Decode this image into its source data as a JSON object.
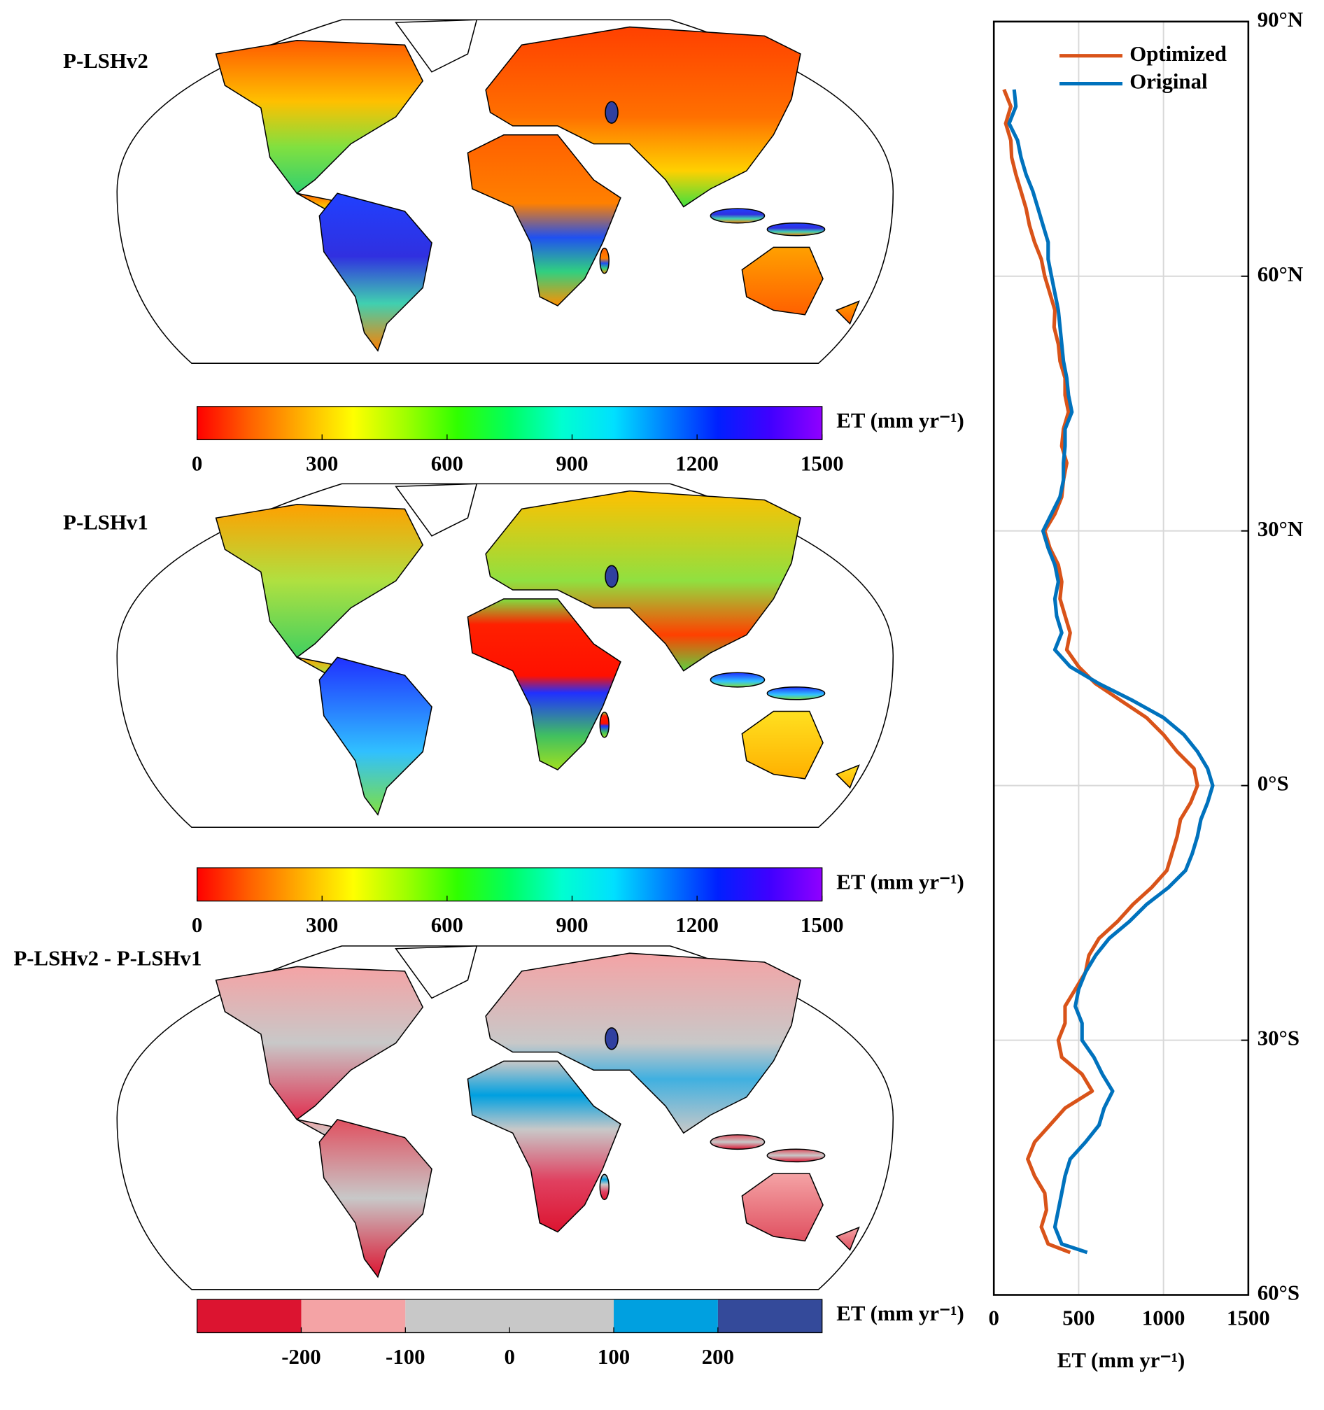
{
  "chart_data": [
    {
      "type": "map",
      "title": "P-LSHv2",
      "colorbar": {
        "label": "ET (mm yr⁻¹)",
        "clim": [
          0,
          1500
        ],
        "ticks": [
          0,
          300,
          600,
          900,
          1200,
          1500
        ],
        "colormap": [
          "#ff0000",
          "#ff6000",
          "#ffb000",
          "#ffff00",
          "#a0ff00",
          "#30ff00",
          "#00ff60",
          "#00ffd0",
          "#00e0ff",
          "#0080ff",
          "#0020ff",
          "#4000ff",
          "#9000ff"
        ]
      }
    },
    {
      "type": "map",
      "title": "P-LSHv1",
      "colorbar": {
        "label": "ET (mm yr⁻¹)",
        "clim": [
          0,
          1500
        ],
        "ticks": [
          0,
          300,
          600,
          900,
          1200,
          1500
        ],
        "colormap": [
          "#ff0000",
          "#ff6000",
          "#ffb000",
          "#ffff00",
          "#a0ff00",
          "#30ff00",
          "#00ff60",
          "#00ffd0",
          "#00e0ff",
          "#0080ff",
          "#0020ff",
          "#4000ff",
          "#9000ff"
        ]
      }
    },
    {
      "type": "map",
      "title": "P-LSHv2 - P-LSHv1",
      "colorbar": {
        "label": "ET (mm yr⁻¹)",
        "clim": [
          -300,
          300
        ],
        "ticks": [
          -200,
          -100,
          0,
          100,
          200
        ],
        "bounds": [
          -300,
          -200,
          -100,
          100,
          200,
          300
        ],
        "colors": [
          "#dc1430",
          "#f4a3a5",
          "#c8c8c8",
          "#00a0e0",
          "#344a9a"
        ]
      }
    },
    {
      "type": "line",
      "xlabel": "ET (mm yr⁻¹)",
      "xlim": [
        0,
        1500
      ],
      "xticks": [
        0,
        500,
        1000,
        1500
      ],
      "ylim": [
        -60,
        90
      ],
      "yticks": [
        {
          "value": -60,
          "label": "60°S"
        },
        {
          "value": -30,
          "label": "30°S"
        },
        {
          "value": 0,
          "label": "0°S"
        },
        {
          "value": 30,
          "label": "30°N"
        },
        {
          "value": 60,
          "label": "60°N"
        },
        {
          "value": 90,
          "label": "90°N"
        }
      ],
      "grid": true,
      "legend": "upper right",
      "y": [
        82,
        80,
        78,
        76,
        74,
        72,
        70,
        68,
        66,
        64,
        62,
        60,
        58,
        56,
        54,
        52,
        50,
        48,
        46,
        44,
        42,
        40,
        38,
        36,
        34,
        32,
        30,
        28,
        26,
        24,
        22,
        20,
        18,
        16,
        14,
        12,
        10,
        8,
        6,
        4,
        2,
        0,
        -2,
        -4,
        -6,
        -8,
        -10,
        -12,
        -14,
        -16,
        -18,
        -20,
        -22,
        -24,
        -26,
        -28,
        -30,
        -32,
        -34,
        -36,
        -38,
        -40,
        -42,
        -44,
        -46,
        -48,
        -50,
        -52,
        -54,
        -55
      ],
      "series": [
        {
          "name": "Optimized",
          "color": "#d95319",
          "values": [
            60,
            100,
            70,
            100,
            105,
            130,
            160,
            190,
            210,
            240,
            280,
            300,
            330,
            360,
            355,
            380,
            390,
            420,
            420,
            440,
            410,
            400,
            430,
            410,
            400,
            360,
            300,
            330,
            380,
            400,
            390,
            420,
            450,
            430,
            500,
            600,
            750,
            900,
            1000,
            1080,
            1180,
            1200,
            1160,
            1100,
            1080,
            1050,
            1020,
            930,
            820,
            730,
            620,
            560,
            540,
            480,
            420,
            420,
            380,
            400,
            520,
            580,
            420,
            330,
            240,
            200,
            240,
            300,
            310,
            280,
            320,
            450
          ]
        },
        {
          "name": "Original",
          "color": "#0072bd",
          "values": [
            120,
            130,
            90,
            140,
            160,
            190,
            230,
            260,
            290,
            320,
            320,
            340,
            360,
            380,
            390,
            400,
            410,
            430,
            440,
            460,
            420,
            420,
            410,
            410,
            390,
            340,
            290,
            320,
            360,
            380,
            360,
            370,
            400,
            360,
            450,
            620,
            820,
            1000,
            1120,
            1200,
            1260,
            1290,
            1260,
            1220,
            1200,
            1170,
            1130,
            1030,
            900,
            800,
            680,
            600,
            540,
            500,
            480,
            520,
            520,
            590,
            640,
            700,
            650,
            620,
            540,
            450,
            420,
            400,
            380,
            360,
            400,
            550
          ]
        }
      ]
    }
  ]
}
